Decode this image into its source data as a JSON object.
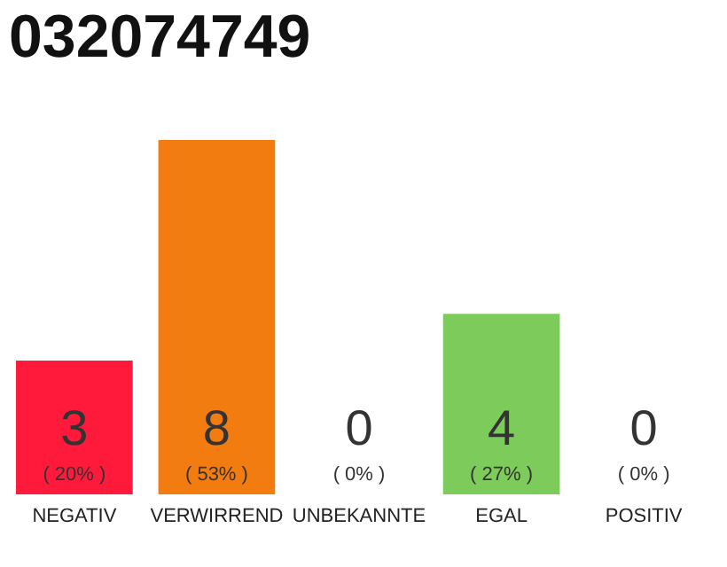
{
  "chart_data": {
    "type": "bar",
    "title": "032074749",
    "categories": [
      "NEGATIV",
      "VERWIRREND",
      "UNBEKANNTE",
      "EGAL",
      "POSITIV"
    ],
    "values": [
      20,
      53,
      0,
      27,
      0
    ],
    "colors": [
      "#ff1a3c",
      "#f27c0f",
      "#9e9e9e",
      "#7dcb5a",
      "#9e9e9e"
    ],
    "value_labels": [
      "( 20% )",
      "( 53% )",
      "( 0% )",
      "( 27% )",
      "( 0% )"
    ],
    "annotations": [
      "3",
      "8",
      "0",
      "4",
      "0"
    ],
    "grid": false,
    "legend": false
  }
}
